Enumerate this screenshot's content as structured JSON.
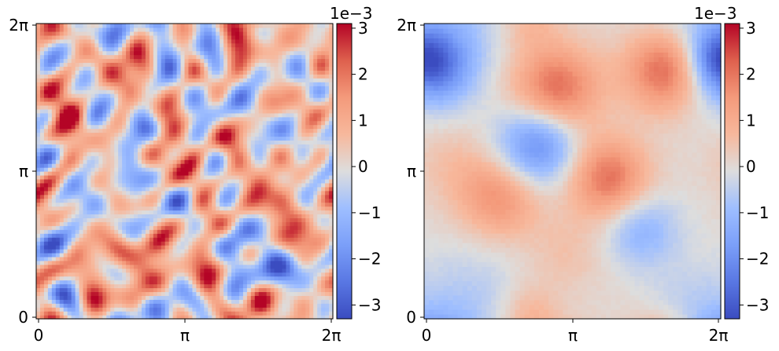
{
  "chart_data": [
    {
      "type": "heatmap",
      "title": "",
      "xlabel": "",
      "ylabel": "",
      "x_ticks": [
        "0",
        "π",
        "2π"
      ],
      "y_ticks": [
        "0",
        "π",
        "2π"
      ],
      "xlim": [
        0,
        6.2832
      ],
      "ylim": [
        0,
        6.2832
      ],
      "colormap": "coolwarm",
      "field": "fine-grained random noise, amplitude about ±2e-3",
      "colorbar": {
        "offset_text": "1e−3",
        "scale": 0.001,
        "range": [
          -3.3,
          3.1
        ],
        "ticks": [
          3,
          2,
          1,
          0,
          -1,
          -2,
          -3
        ],
        "tick_labels": [
          "3",
          "2",
          "1",
          "0",
          "−1",
          "−2",
          "−3"
        ]
      }
    },
    {
      "type": "heatmap",
      "title": "",
      "xlabel": "",
      "ylabel": "",
      "x_ticks": [
        "0",
        "π",
        "2π"
      ],
      "y_ticks": [
        "0",
        "π",
        "2π"
      ],
      "xlim": [
        0,
        6.2832
      ],
      "ylim": [
        0,
        6.2832
      ],
      "colormap": "coolwarm",
      "field": "smooth large-scale pattern, amplitude about ±2.5e-3",
      "colorbar": {
        "offset_text": "1e−3",
        "scale": 0.001,
        "range": [
          -3.3,
          3.1
        ],
        "ticks": [
          3,
          2,
          1,
          0,
          -1,
          -2,
          -3
        ],
        "tick_labels": [
          "3",
          "2",
          "1",
          "0",
          "−1",
          "−2",
          "−3"
        ]
      }
    }
  ],
  "colors": {
    "cmap_low": "#3b4cc0",
    "cmap_mid": "#dddddd",
    "cmap_high": "#b40426"
  }
}
